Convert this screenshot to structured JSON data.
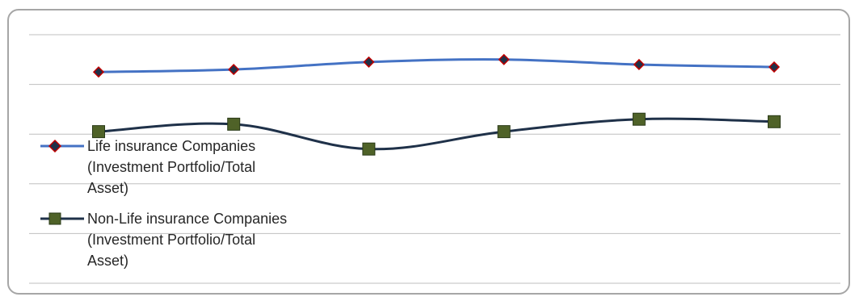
{
  "chart_data": {
    "type": "line",
    "title": "",
    "xlabel": "",
    "ylabel": "",
    "categories": [
      "",
      "",
      "",
      "",
      "",
      ""
    ],
    "ylim": [
      0,
      1
    ],
    "grid": true,
    "legend_position": "left",
    "series": [
      {
        "name": "Life insurance Companies (Investment Portfolio/Total Asset)",
        "values": [
          0.85,
          0.86,
          0.89,
          0.9,
          0.88,
          0.87
        ],
        "color": "#4472c4",
        "marker": "diamond",
        "marker_color": "#c00000"
      },
      {
        "name": "Non-Life insurance Companies (Investment Portfolio/Total Asset)",
        "values": [
          0.61,
          0.64,
          0.54,
          0.61,
          0.66,
          0.65
        ],
        "color": "#1f3149",
        "marker": "square",
        "marker_color": "#4f6228"
      }
    ]
  }
}
